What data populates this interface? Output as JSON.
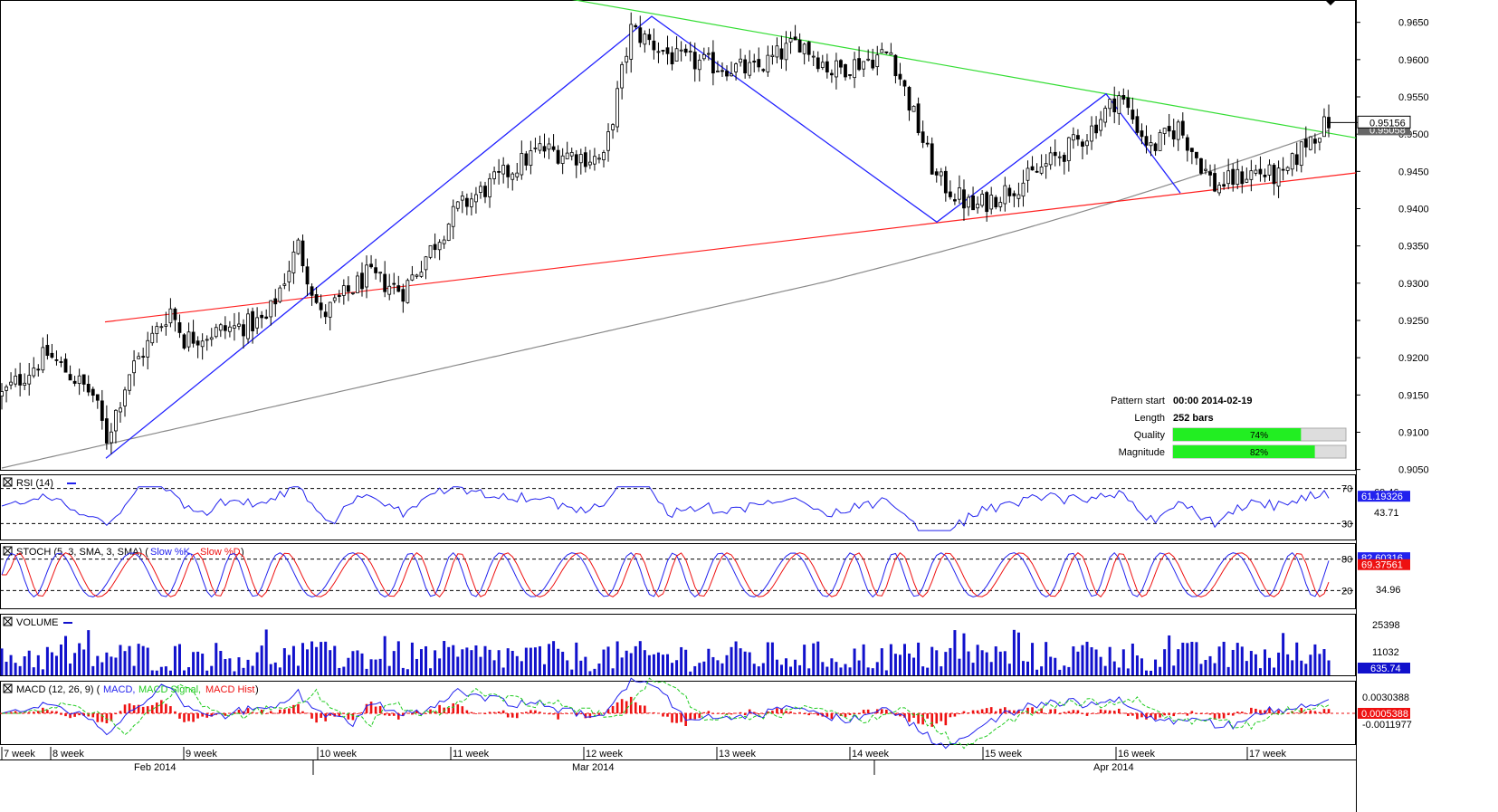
{
  "colors": {
    "bg": "#ffffff",
    "axis": "#000000",
    "grid_dash": "#000000",
    "bull": "#ffffff",
    "bear": "#000000",
    "support": "#ff2020",
    "resistance": "#33dd33",
    "zigzag": "#2222ff",
    "ma": "#888888",
    "rsi": "#2222ee",
    "stoch_k": "#2222ee",
    "stoch_d": "#ee1111",
    "volume": "#1111cc",
    "macd": "#2222ee",
    "macd_signal": "#22cc22",
    "macd_hist": "#ee1111",
    "bar_green": "#22ee22",
    "bar_grey": "#dddddd"
  },
  "price_axis": {
    "ticks": [
      "0.9650",
      "0.9600",
      "0.9550",
      "0.9500",
      "0.9450",
      "0.9400",
      "0.9350",
      "0.9300",
      "0.9250",
      "0.9200",
      "0.9150",
      "0.9100",
      "0.9050"
    ],
    "current": "0.95156",
    "ma_value": "0.95058"
  },
  "pattern_info": {
    "start_label": "Pattern start",
    "start_value": "00:00 2014-02-19",
    "length_label": "Length",
    "length_value": "252 bars",
    "quality_label": "Quality",
    "quality_value": "74%",
    "quality_fraction": 0.74,
    "magnitude_label": "Magnitude",
    "magnitude_value": "82%",
    "magnitude_fraction": 0.82
  },
  "rsi": {
    "title": "RSI (14)",
    "level_high": "70",
    "level_low": "30",
    "tick_top": "69.46",
    "tick_mid": "43.71",
    "value": "61.19326"
  },
  "stoch": {
    "title": "STOCH (5, 3, SMA, 3, SMA)",
    "k_label": "Slow %K,",
    "d_label": "Slow %D",
    "level_high": "80",
    "level_low": "20",
    "tick_mid": "34.96",
    "value_k": "82.60316",
    "value_d": "69.37561"
  },
  "volume": {
    "title": "VOLUME",
    "tick_high": "25398",
    "tick_mid": "11032",
    "value": "635.74"
  },
  "macd": {
    "title": "MACD (12, 26, 9)",
    "legend_macd": "MACD,",
    "legend_signal": "MACD Signal,",
    "legend_hist": "MACD Hist",
    "tick_high": "0.0030388",
    "tick_low": "-0.0011977",
    "value": "0.0005388"
  },
  "time_axis": {
    "weeks": [
      "7 week",
      "8 week",
      "9 week",
      "10 week",
      "11 week",
      "12 week",
      "13 week",
      "14 week",
      "15 week",
      "16 week",
      "17 week"
    ],
    "months": [
      "Feb 2014",
      "Mar 2014",
      "Apr 2014"
    ]
  },
  "chart_data": {
    "type": "candlestick",
    "symbol_price_range": [
      0.9045,
      0.968
    ],
    "support_line": {
      "from": 0.9248,
      "to": 0.9448
    },
    "resistance_line": {
      "from": 0.9685,
      "to": 0.9495
    },
    "zigzag_points": [
      0.9065,
      0.9658,
      0.9382,
      0.9554,
      0.9421
    ],
    "last_close": 0.95156,
    "ma_last": 0.95058,
    "rsi_last": 61.19326,
    "stoch_k_last": 82.60316,
    "stoch_d_last": 69.37561,
    "volume_last": 635.74,
    "macd_last": 0.0005388
  }
}
